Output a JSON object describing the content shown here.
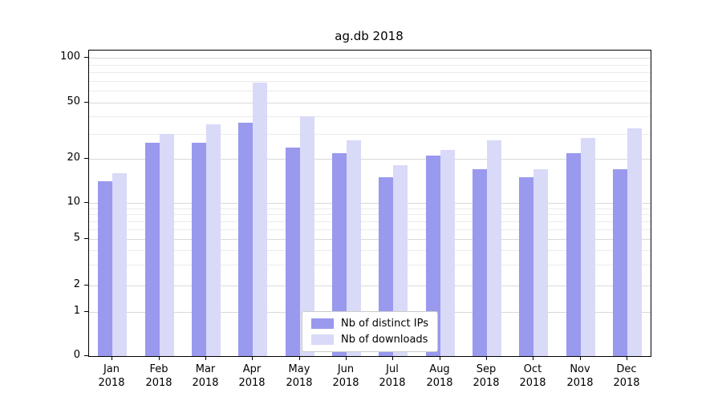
{
  "chart_data": {
    "type": "bar",
    "title": "ag.db 2018",
    "categories": [
      "Jan 2018",
      "Feb 2018",
      "Mar 2018",
      "Apr 2018",
      "May 2018",
      "Jun 2018",
      "Jul 2018",
      "Aug 2018",
      "Sep 2018",
      "Oct 2018",
      "Nov 2018",
      "Dec 2018"
    ],
    "series": [
      {
        "name": "Nb of distinct IPs",
        "color": "#9999ee",
        "values": [
          14,
          26,
          26,
          36,
          24,
          22,
          15,
          21,
          17,
          15,
          22,
          17
        ]
      },
      {
        "name": "Nb of downloads",
        "color": "#d9d9f8",
        "values": [
          16,
          30,
          35,
          68,
          40,
          27,
          18,
          23,
          27,
          17,
          28,
          33
        ]
      }
    ],
    "yscale": "symlog",
    "yticks": [
      0,
      1,
      2,
      5,
      10,
      20,
      50,
      100
    ],
    "minor_yticks": [
      3,
      4,
      6,
      7,
      8,
      9,
      30,
      40,
      60,
      70,
      80,
      90
    ],
    "ylim": [
      0,
      110
    ],
    "xlabel": "",
    "ylabel": "",
    "grid": true,
    "legend_position": "lower center"
  }
}
